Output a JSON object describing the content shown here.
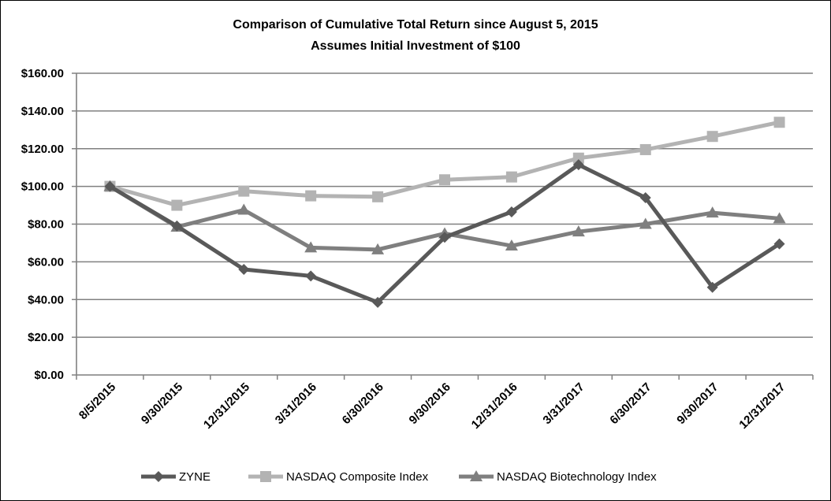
{
  "chart_data": {
    "type": "line",
    "title": "Comparison of Cumulative Total Return since August 5, 2015",
    "subtitle": "Assumes Initial Investment of $100",
    "categories": [
      "8/5/2015",
      "9/30/2015",
      "12/31/2015",
      "3/31/2016",
      "6/30/2016",
      "9/30/2016",
      "12/31/2016",
      "3/31/2017",
      "6/30/2017",
      "9/30/2017",
      "12/31/2017"
    ],
    "y_ticks": [
      "$0.00",
      "$20.00",
      "$40.00",
      "$60.00",
      "$80.00",
      "$100.00",
      "$120.00",
      "$140.00",
      "$160.00"
    ],
    "ylim": [
      0,
      160
    ],
    "grid": true,
    "legend_position": "bottom",
    "series": [
      {
        "name": "ZYNE",
        "color": "#595959",
        "marker": "diamond",
        "values": [
          100,
          79,
          56,
          52.5,
          38.5,
          73,
          86.5,
          111.5,
          94,
          46.5,
          69.5
        ]
      },
      {
        "name": "NASDAQ Composite Index",
        "color": "#b3b3b3",
        "marker": "square",
        "values": [
          100,
          90,
          97.5,
          95,
          94.5,
          103.5,
          105,
          115,
          119.5,
          126.5,
          134
        ]
      },
      {
        "name": "NASDAQ Biotechnology Index",
        "color": "#7f7f7f",
        "marker": "triangle",
        "values": [
          100,
          78.5,
          87.5,
          67.5,
          66.5,
          75,
          68.5,
          76,
          80,
          86,
          83
        ]
      }
    ]
  }
}
